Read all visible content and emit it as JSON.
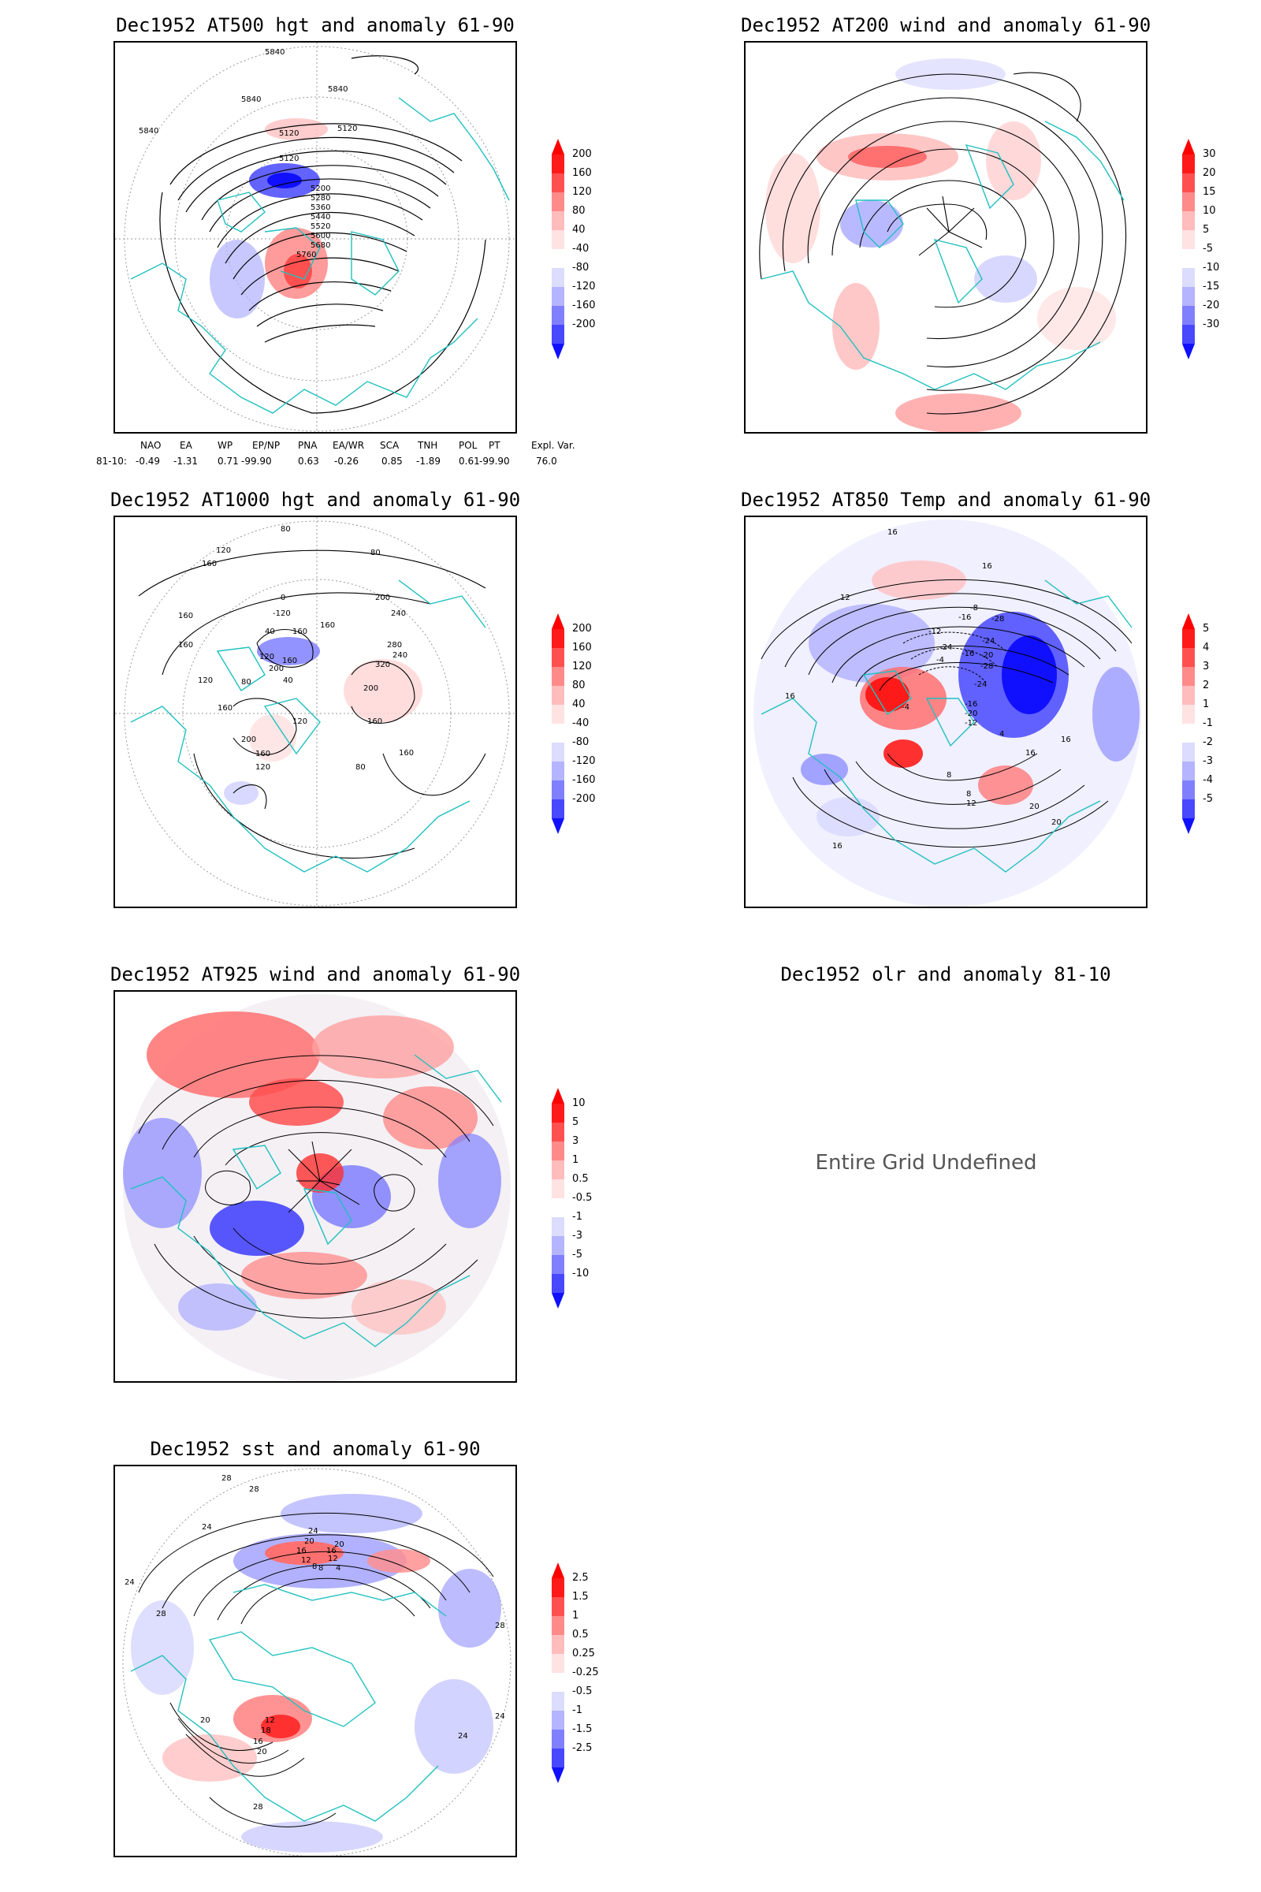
{
  "panels": [
    {
      "title": "Dec1952 AT500 hgt and anomaly 61-90",
      "contour_labels": [
        "5840",
        "5840",
        "5840",
        "5840",
        "5120",
        "5120",
        "5120",
        "5200",
        "5280",
        "5360",
        "5440",
        "5520",
        "5600",
        "5680",
        "5760"
      ],
      "colorbar": {
        "labels": [
          "200",
          "160",
          "120",
          "80",
          "40",
          "-40",
          "-80",
          "-120",
          "-160",
          "-200"
        ]
      }
    },
    {
      "title": "Dec1952 AT200 wind and anomaly 61-90",
      "colorbar": {
        "labels": [
          "30",
          "20",
          "15",
          "10",
          "5",
          "-5",
          "-10",
          "-15",
          "-20",
          "-30"
        ]
      }
    },
    {
      "title": "Dec1952 AT1000 hgt and anomaly 61-90",
      "contour_labels": [
        "80",
        "120",
        "160",
        "80",
        "0",
        "-120",
        "160",
        "200",
        "240",
        "160",
        "40",
        "160",
        "160",
        "280",
        "320",
        "240",
        "120",
        "200",
        "160",
        "80",
        "40",
        "120",
        "200",
        "160",
        "120",
        "160",
        "200",
        "160",
        "120",
        "80",
        "160"
      ],
      "colorbar": {
        "labels": [
          "200",
          "160",
          "120",
          "80",
          "40",
          "-40",
          "-80",
          "-120",
          "-160",
          "-200"
        ]
      }
    },
    {
      "title": "Dec1952 AT850 Temp and anomaly 61-90",
      "contour_labels": [
        "16",
        "16",
        "12",
        "-8",
        "-16",
        "-28",
        "-12",
        "-24",
        "-24",
        "-4",
        "-16",
        "-20",
        "-28",
        "-24",
        "-16",
        "-20",
        "-12",
        "-4",
        "4",
        "8",
        "16",
        "16",
        "16",
        "20",
        "12",
        "8",
        "16",
        "20"
      ],
      "colorbar": {
        "labels": [
          "5",
          "4",
          "3",
          "2",
          "1",
          "-1",
          "-2",
          "-3",
          "-4",
          "-5"
        ]
      }
    },
    {
      "title": "Dec1952 AT925 wind and anomaly 61-90",
      "colorbar": {
        "labels": [
          "10",
          "5",
          "3",
          "1",
          "0.5",
          "-0.5",
          "-1",
          "-3",
          "-5",
          "-10"
        ]
      }
    },
    {
      "title": "Dec1952 olr and anomaly 81-10",
      "message": "Entire Grid Undefined"
    },
    {
      "title": "Dec1952 sst and anomaly 61-90",
      "contour_labels": [
        "28",
        "28",
        "24",
        "24",
        "20",
        "20",
        "16",
        "16",
        "12",
        "12",
        "8",
        "8",
        "4",
        "24",
        "28",
        "28",
        "24",
        "20",
        "12",
        "16",
        "18",
        "20",
        "28",
        "24"
      ],
      "colorbar": {
        "labels": [
          "2.5",
          "1.5",
          "1",
          "0.5",
          "0.25",
          "-0.25",
          "-0.5",
          "-1",
          "-1.5",
          "-2.5"
        ]
      }
    }
  ],
  "teleconnection": {
    "header": [
      "NAO",
      "EA",
      "WP",
      "EP/NP",
      "PNA",
      "EA/WR",
      "SCA",
      "TNH",
      "POL",
      "PT",
      "Expl. Var."
    ],
    "row_label": "81-10:",
    "values": [
      "-0.49",
      "-1.31",
      "0.71",
      "-99.90",
      "0.63",
      "-0.26",
      "0.85",
      "-1.89",
      "0.61",
      "-99.90",
      "76.0"
    ]
  },
  "colors": {
    "coast": "#20c0c0",
    "pos_strong": "#ff0000",
    "neg_strong": "#0000ff",
    "contour": "#000000",
    "grid": "#999999"
  }
}
